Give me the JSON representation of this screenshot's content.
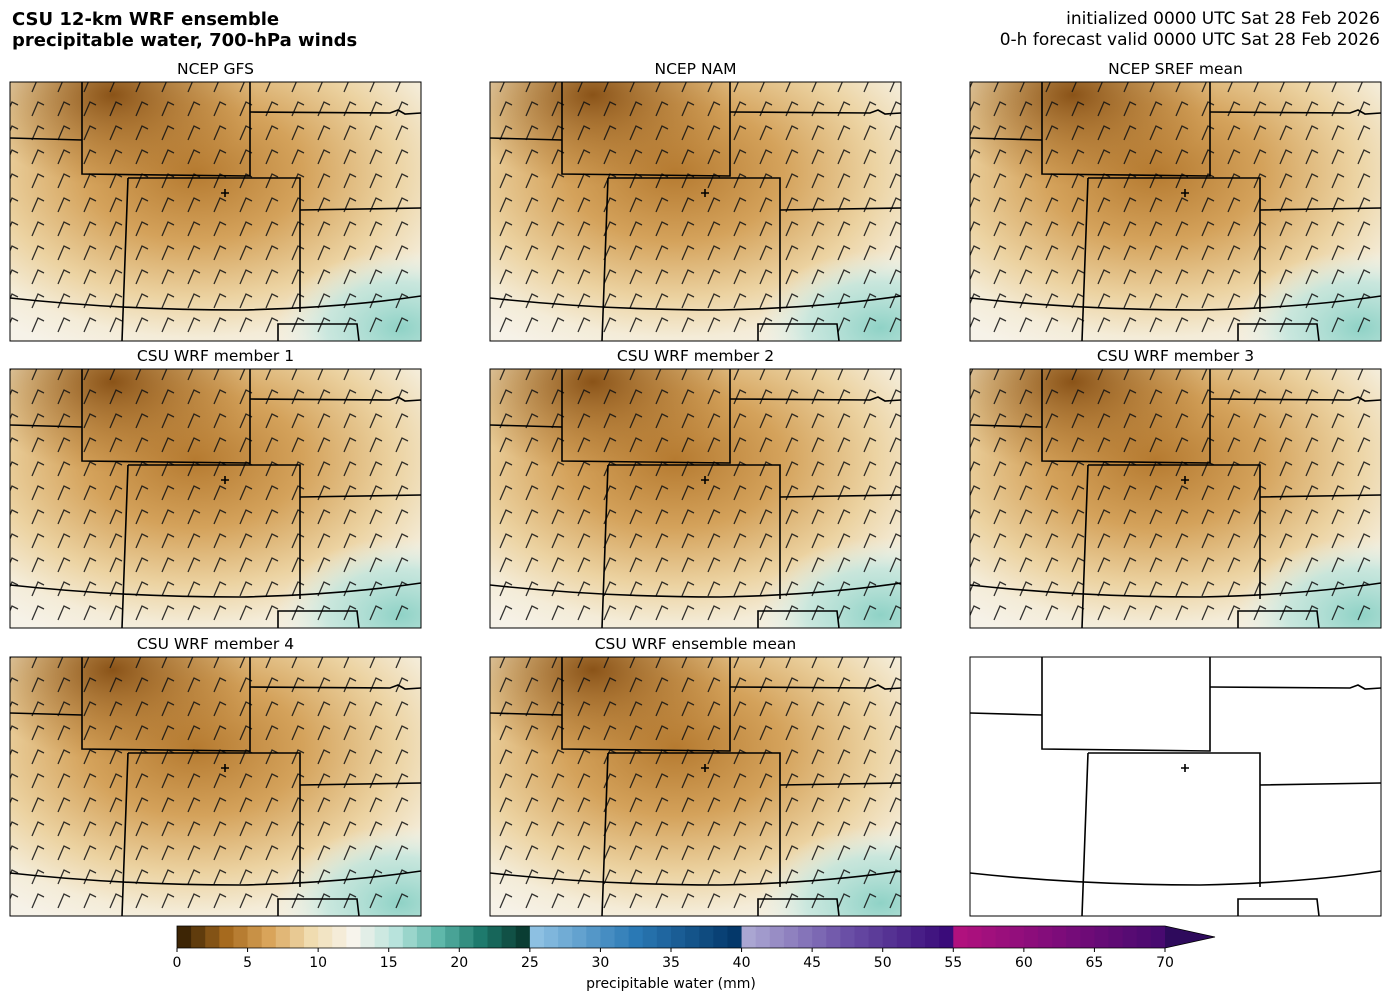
{
  "header": {
    "title_lines": [
      "CSU 12-km WRF ensemble",
      "precipitable water, 700-hPa winds"
    ],
    "info_lines": [
      "initialized 0000 UTC Sat 28 Feb 2026",
      "0-h forecast valid 0000 UTC Sat 28 Feb 2026"
    ]
  },
  "panels": [
    {
      "title": "NCEP GFS"
    },
    {
      "title": "NCEP NAM"
    },
    {
      "title": "NCEP SREF mean"
    },
    {
      "title": "CSU WRF member 1"
    },
    {
      "title": "CSU WRF member 2"
    },
    {
      "title": "CSU WRF member 3"
    },
    {
      "title": "CSU WRF member 4"
    },
    {
      "title": "CSU WRF ensemble mean"
    }
  ],
  "colorbar": {
    "label": "precipitable water (mm)",
    "lim": [
      0,
      70
    ],
    "ticks": [
      0,
      5,
      10,
      15,
      20,
      25,
      30,
      35,
      40,
      45,
      50,
      55,
      60,
      65,
      70
    ],
    "extend_color": "#2e0a5c",
    "bands": [
      {
        "range": [
          0,
          25
        ],
        "colors": [
          "#3d2505",
          "#a66a1e",
          "#d9a45a",
          "#f0dcb0",
          "#f7f4ec",
          "#b8e3dc",
          "#5fb8aa",
          "#1e7a6d",
          "#0a3d33"
        ]
      },
      {
        "range": [
          25,
          40
        ],
        "colors": [
          "#8dc0e2",
          "#2a79b5",
          "#04386a"
        ]
      },
      {
        "range": [
          40,
          55
        ],
        "colors": [
          "#aaa6d2",
          "#6a4fa6",
          "#3a0b7a"
        ]
      },
      {
        "range": [
          55,
          70
        ],
        "colors": [
          "#b0117e",
          "#7d0c7a",
          "#480a70"
        ]
      }
    ]
  }
}
